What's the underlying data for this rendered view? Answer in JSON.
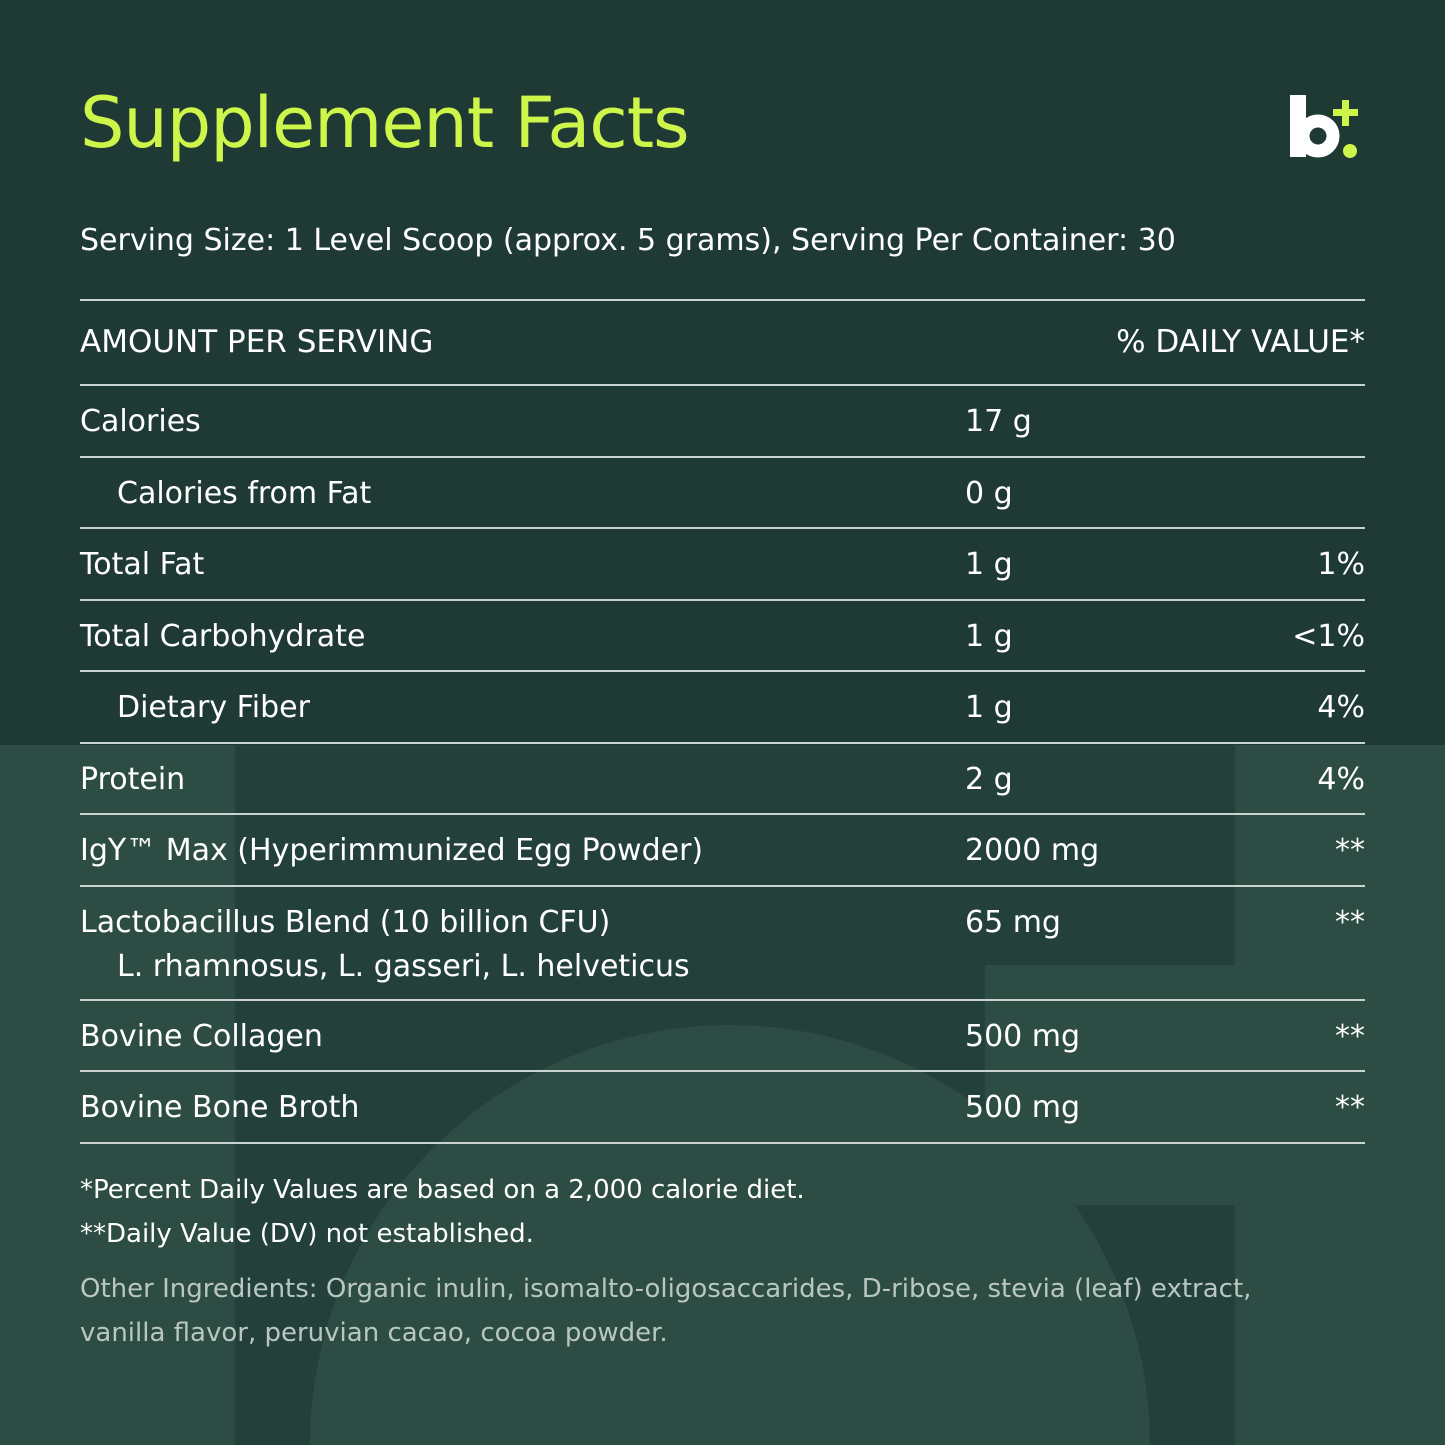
{
  "header": {
    "title": "Supplement Facts",
    "serving": "Serving Size: 1 Level Scoop (approx. 5 grams), Serving Per Container: 30"
  },
  "table": {
    "columns": [
      "AMOUNT PER SERVING",
      "% DAILY VALUE*"
    ],
    "rows": [
      {
        "name": "Calories",
        "amount": "17 g"
      },
      {
        "name": "Calories from Fat",
        "amount": "0 g",
        "indented": true
      },
      {
        "name": "Total Fat",
        "amount": "1 g",
        "dv": "1%"
      },
      {
        "name": "Total Carbohydrate",
        "amount": "1 g",
        "dv": "<1%"
      },
      {
        "name": "Dietary Fiber",
        "amount": "1 g",
        "dv": "4%",
        "indented": true
      },
      {
        "name": "Protein",
        "amount": "2 g",
        "dv": "4%"
      },
      {
        "name": "IgY™ Max (Hyperimmunized Egg Powder)",
        "amount": "2000 mg",
        "dv": "**"
      },
      {
        "name": "Lactobacillus Blend (10 billion CFU)",
        "detail": "L. rhamnosus, L. gasseri, L. helveticus",
        "amount": "65 mg",
        "dv": "**"
      },
      {
        "name": "Bovine Collagen",
        "amount": "500 mg",
        "dv": "**"
      },
      {
        "name": "Bovine Bone Broth",
        "amount": "500 mg",
        "dv": "**"
      }
    ]
  },
  "footnotes": [
    "*Percent Daily Values are based on a 2,000 calorie diet.",
    "**Daily Value (DV) not established."
  ],
  "other_ingredients": "Other Ingredients: Organic inulin, isomalto-oligosaccarides, D-ribose, stevia (leaf) extract, vanilla flavor, peruvian cacao, cocoa powder."
}
